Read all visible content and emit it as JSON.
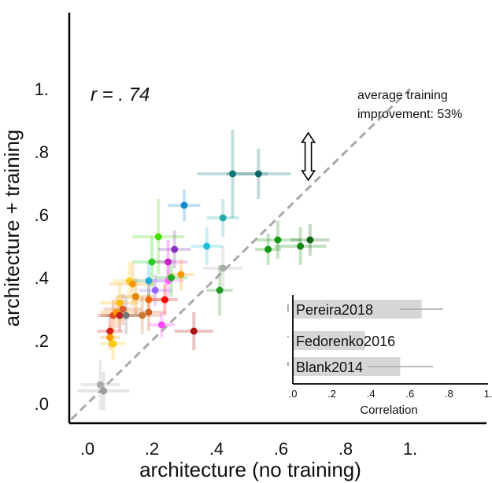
{
  "chart_data": [
    {
      "type": "scatter",
      "title": "",
      "xlabel": "architecture (no training)",
      "ylabel": "architecture + training",
      "xlim": [
        -0.05,
        1.02
      ],
      "ylim": [
        -0.05,
        1.02
      ],
      "x_ticks": [
        0.0,
        0.2,
        0.4,
        0.6,
        0.8,
        1.0
      ],
      "x_tick_labels": [
        ".0",
        ".2",
        ".4",
        ".6",
        ".8",
        "1."
      ],
      "y_ticks": [
        0.0,
        0.2,
        0.4,
        0.6,
        0.8,
        1.0
      ],
      "y_tick_labels": [
        ".0",
        ".2",
        ".4",
        ".6",
        ".8",
        "1."
      ],
      "grid": false,
      "correlation_label": "r = . 74",
      "diagonal_line": true,
      "annotation": {
        "text_line1": "average training",
        "text_line2": "improvement: 53%",
        "arrow_from_y": 0.71,
        "arrow_to_y": 0.86,
        "arrow_x": 0.66
      },
      "points": [
        {
          "x": 0.04,
          "y": 0.06,
          "xerr": 0.06,
          "yerr": 0.08,
          "color": "#aaaaaa"
        },
        {
          "x": 0.05,
          "y": 0.04,
          "xerr": 0.08,
          "yerr": 0.06,
          "color": "#999999"
        },
        {
          "x": 0.07,
          "y": 0.23,
          "xerr": 0.04,
          "yerr": 0.05,
          "color": "#d62020"
        },
        {
          "x": 0.07,
          "y": 0.21,
          "xerr": 0.03,
          "yerr": 0.04,
          "color": "#ff9900"
        },
        {
          "x": 0.08,
          "y": 0.19,
          "xerr": 0.04,
          "yerr": 0.05,
          "color": "#ffcc00"
        },
        {
          "x": 0.08,
          "y": 0.28,
          "xerr": 0.05,
          "yerr": 0.05,
          "color": "#e05020"
        },
        {
          "x": 0.09,
          "y": 0.29,
          "xerr": 0.05,
          "yerr": 0.05,
          "color": "#ff9900"
        },
        {
          "x": 0.1,
          "y": 0.28,
          "xerr": 0.06,
          "yerr": 0.05,
          "color": "#c02020"
        },
        {
          "x": 0.1,
          "y": 0.32,
          "xerr": 0.06,
          "yerr": 0.06,
          "color": "#ffbb00"
        },
        {
          "x": 0.11,
          "y": 0.3,
          "xerr": 0.06,
          "yerr": 0.05,
          "color": "#d86030"
        },
        {
          "x": 0.12,
          "y": 0.28,
          "xerr": 0.06,
          "yerr": 0.06,
          "color": "#777777"
        },
        {
          "x": 0.13,
          "y": 0.39,
          "xerr": 0.05,
          "yerr": 0.06,
          "color": "#ffcc22"
        },
        {
          "x": 0.14,
          "y": 0.38,
          "xerr": 0.07,
          "yerr": 0.07,
          "color": "#ff9900"
        },
        {
          "x": 0.15,
          "y": 0.34,
          "xerr": 0.06,
          "yerr": 0.06,
          "color": "#e08800"
        },
        {
          "x": 0.17,
          "y": 0.28,
          "xerr": 0.06,
          "yerr": 0.06,
          "color": "#cc7733"
        },
        {
          "x": 0.19,
          "y": 0.29,
          "xerr": 0.05,
          "yerr": 0.06,
          "color": "#d06020"
        },
        {
          "x": 0.19,
          "y": 0.33,
          "xerr": 0.05,
          "yerr": 0.05,
          "color": "#ff6600"
        },
        {
          "x": 0.19,
          "y": 0.39,
          "xerr": 0.06,
          "yerr": 0.06,
          "color": "#22aadd"
        },
        {
          "x": 0.2,
          "y": 0.45,
          "xerr": 0.06,
          "yerr": 0.08,
          "color": "#22cc22"
        },
        {
          "x": 0.21,
          "y": 0.36,
          "xerr": 0.05,
          "yerr": 0.05,
          "color": "#9966ff"
        },
        {
          "x": 0.22,
          "y": 0.53,
          "xerr": 0.08,
          "yerr": 0.12,
          "color": "#44dd00"
        },
        {
          "x": 0.23,
          "y": 0.25,
          "xerr": 0.04,
          "yerr": 0.04,
          "color": "#ff44ff"
        },
        {
          "x": 0.24,
          "y": 0.33,
          "xerr": 0.04,
          "yerr": 0.05,
          "color": "#ff0000"
        },
        {
          "x": 0.25,
          "y": 0.39,
          "xerr": 0.05,
          "yerr": 0.05,
          "color": "#ff66ff"
        },
        {
          "x": 0.25,
          "y": 0.45,
          "xerr": 0.06,
          "yerr": 0.07,
          "color": "#cc22cc"
        },
        {
          "x": 0.26,
          "y": 0.4,
          "xerr": 0.05,
          "yerr": 0.06,
          "color": "#22aa22"
        },
        {
          "x": 0.27,
          "y": 0.49,
          "xerr": 0.05,
          "yerr": 0.06,
          "color": "#8833bb"
        },
        {
          "x": 0.29,
          "y": 0.41,
          "xerr": 0.04,
          "yerr": 0.05,
          "color": "#ff9900"
        },
        {
          "x": 0.3,
          "y": 0.63,
          "xerr": 0.05,
          "yerr": 0.05,
          "color": "#1188cc"
        },
        {
          "x": 0.33,
          "y": 0.23,
          "xerr": 0.06,
          "yerr": 0.06,
          "color": "#aa1111"
        },
        {
          "x": 0.37,
          "y": 0.5,
          "xerr": 0.05,
          "yerr": 0.06,
          "color": "#22bbdd"
        },
        {
          "x": 0.41,
          "y": 0.36,
          "xerr": 0.04,
          "yerr": 0.08,
          "color": "#229922"
        },
        {
          "x": 0.42,
          "y": 0.43,
          "xerr": 0.06,
          "yerr": 0.07,
          "color": "#aaaaaa"
        },
        {
          "x": 0.42,
          "y": 0.59,
          "xerr": 0.05,
          "yerr": 0.06,
          "color": "#22aaaa"
        },
        {
          "x": 0.45,
          "y": 0.73,
          "xerr": 0.11,
          "yerr": 0.14,
          "color": "#117777"
        },
        {
          "x": 0.53,
          "y": 0.73,
          "xerr": 0.1,
          "yerr": 0.08,
          "color": "#116666"
        },
        {
          "x": 0.56,
          "y": 0.49,
          "xerr": 0.04,
          "yerr": 0.05,
          "color": "#119911"
        },
        {
          "x": 0.59,
          "y": 0.52,
          "xerr": 0.07,
          "yerr": 0.06,
          "color": "#119911"
        },
        {
          "x": 0.66,
          "y": 0.5,
          "xerr": 0.08,
          "yerr": 0.06,
          "color": "#118811"
        },
        {
          "x": 0.69,
          "y": 0.52,
          "xerr": 0.06,
          "yerr": 0.05,
          "color": "#116611"
        }
      ]
    },
    {
      "type": "bar",
      "orientation": "horizontal",
      "title": "",
      "xlabel": "Correlation",
      "xlim": [
        0.0,
        1.0
      ],
      "x_ticks": [
        0.0,
        0.2,
        0.4,
        0.6,
        0.8,
        1.0
      ],
      "x_tick_labels": [
        ".0",
        ".2",
        ".4",
        ".6",
        ".8",
        "1."
      ],
      "categories": [
        "Pereira2018",
        "Fedorenko2016",
        "Blank2014"
      ],
      "values": [
        0.66,
        0.37,
        0.55
      ],
      "errors": [
        0.11,
        0.0,
        0.17
      ],
      "significance": [
        "*****",
        "*",
        "***"
      ],
      "bar_color": "#d6d6d6"
    }
  ]
}
